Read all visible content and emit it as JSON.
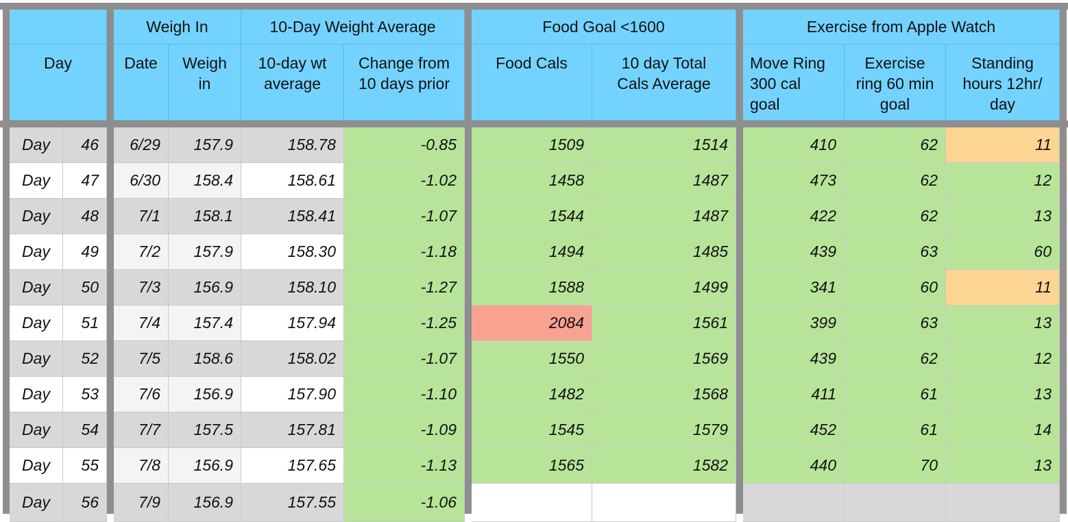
{
  "headers": {
    "weigh_in": "Weigh In",
    "avg_group": "10-Day Weight Average",
    "food_group": "Food Goal <1600",
    "exercise_group": "Exercise from Apple Watch",
    "day": "Day",
    "date": "Date",
    "weigh": "Weigh\nin",
    "avg": "10-day wt\naverage",
    "change": "Change from\n10 days prior",
    "food_cals": "Food Cals",
    "total_cals": "10 day Total\nCals Average",
    "move": "Move Ring\n300 cal\ngoal",
    "exercise": "Exercise\nring 60 min\ngoal",
    "standing": "Standing\nhours 12hr/\nday"
  },
  "colors": {
    "header": "#74d3fe",
    "goal_met": "#b8e49a",
    "warning": "#fdd593",
    "over": "#f8a291",
    "gray": "#d8d8d8"
  },
  "rows": [
    {
      "label": "Day",
      "day": "46",
      "date": "6/29",
      "weigh": "157.9",
      "avg": "158.78",
      "change": "-0.85",
      "food": "1509",
      "total": "1514",
      "move": "410",
      "exercise": "62",
      "standing": "11",
      "food_color": "goal_met",
      "standing_color": "warning"
    },
    {
      "label": "Day",
      "day": "47",
      "date": "6/30",
      "weigh": "158.4",
      "avg": "158.61",
      "change": "-1.02",
      "food": "1458",
      "total": "1487",
      "move": "473",
      "exercise": "62",
      "standing": "12",
      "food_color": "goal_met",
      "standing_color": "goal_met"
    },
    {
      "label": "Day",
      "day": "48",
      "date": "7/1",
      "weigh": "158.1",
      "avg": "158.41",
      "change": "-1.07",
      "food": "1544",
      "total": "1487",
      "move": "422",
      "exercise": "62",
      "standing": "13",
      "food_color": "goal_met",
      "standing_color": "goal_met"
    },
    {
      "label": "Day",
      "day": "49",
      "date": "7/2",
      "weigh": "157.9",
      "avg": "158.30",
      "change": "-1.18",
      "food": "1494",
      "total": "1485",
      "move": "439",
      "exercise": "63",
      "standing": "60",
      "food_color": "goal_met",
      "standing_color": "goal_met"
    },
    {
      "label": "Day",
      "day": "50",
      "date": "7/3",
      "weigh": "156.9",
      "avg": "158.10",
      "change": "-1.27",
      "food": "1588",
      "total": "1499",
      "move": "341",
      "exercise": "60",
      "standing": "11",
      "food_color": "goal_met",
      "standing_color": "warning"
    },
    {
      "label": "Day",
      "day": "51",
      "date": "7/4",
      "weigh": "157.4",
      "avg": "157.94",
      "change": "-1.25",
      "food": "2084",
      "total": "1561",
      "move": "399",
      "exercise": "63",
      "standing": "13",
      "food_color": "over",
      "standing_color": "goal_met"
    },
    {
      "label": "Day",
      "day": "52",
      "date": "7/5",
      "weigh": "158.6",
      "avg": "158.02",
      "change": "-1.07",
      "food": "1550",
      "total": "1569",
      "move": "439",
      "exercise": "62",
      "standing": "12",
      "food_color": "goal_met",
      "standing_color": "goal_met"
    },
    {
      "label": "Day",
      "day": "53",
      "date": "7/6",
      "weigh": "156.9",
      "avg": "157.90",
      "change": "-1.10",
      "food": "1482",
      "total": "1568",
      "move": "411",
      "exercise": "61",
      "standing": "13",
      "food_color": "goal_met",
      "standing_color": "goal_met"
    },
    {
      "label": "Day",
      "day": "54",
      "date": "7/7",
      "weigh": "157.5",
      "avg": "157.81",
      "change": "-1.09",
      "food": "1545",
      "total": "1579",
      "move": "452",
      "exercise": "61",
      "standing": "14",
      "food_color": "goal_met",
      "standing_color": "goal_met"
    },
    {
      "label": "Day",
      "day": "55",
      "date": "7/8",
      "weigh": "156.9",
      "avg": "157.65",
      "change": "-1.13",
      "food": "1565",
      "total": "1582",
      "move": "440",
      "exercise": "70",
      "standing": "13",
      "food_color": "goal_met",
      "standing_color": "goal_met"
    },
    {
      "label": "Day",
      "day": "56",
      "date": "7/9",
      "weigh": "156.9",
      "avg": "157.55",
      "change": "-1.06",
      "food": "",
      "total": "",
      "move": "",
      "exercise": "",
      "standing": "",
      "food_color": "empty",
      "standing_color": "gray"
    }
  ]
}
